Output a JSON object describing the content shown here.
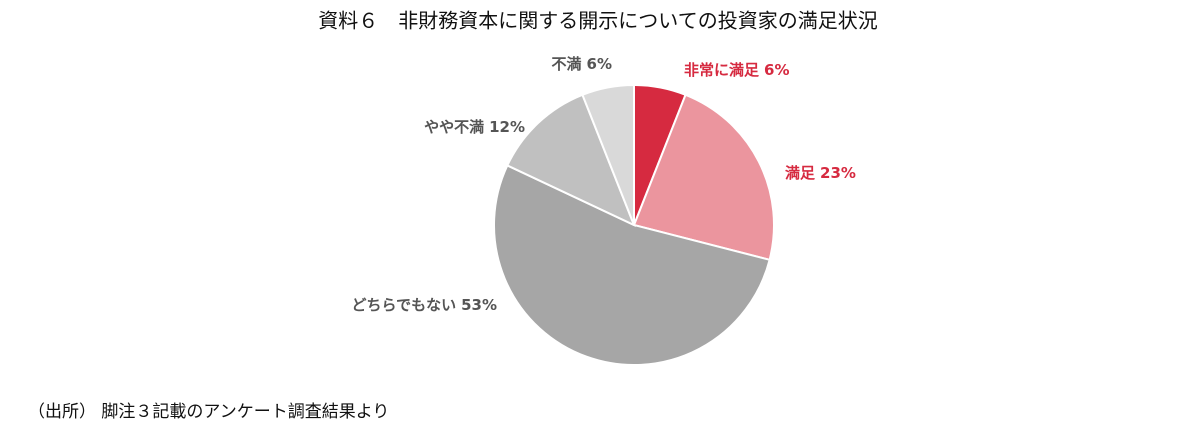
{
  "chart_data": {
    "type": "pie",
    "title": "資料６　非財務資本に関する開示についての投資家の満足状況",
    "categories": [
      "非常に満足",
      "満足",
      "どちらでもない",
      "やや不満",
      "不満"
    ],
    "values": [
      6,
      23,
      53,
      12,
      6
    ],
    "value_labels": [
      "6%",
      "23%",
      "53%",
      "12%",
      "6%"
    ],
    "colors": [
      "#d62a40",
      "#eb959e",
      "#a6a6a6",
      "#c0c0c0",
      "#d9d9d9"
    ],
    "source": "（出所） 脚注３記載のアンケート調査結果より"
  }
}
